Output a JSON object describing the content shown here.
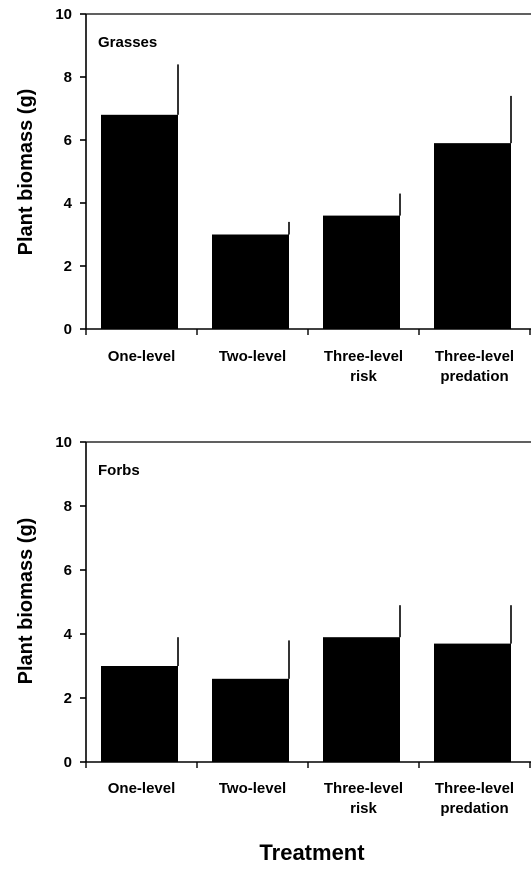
{
  "chart_data": [
    {
      "type": "bar",
      "panel_label": "Grasses",
      "ylabel": "Plant biomass (g)",
      "ylim": [
        0,
        10
      ],
      "yticks": [
        0,
        2,
        4,
        6,
        8,
        10
      ],
      "categories": [
        [
          "One-level"
        ],
        [
          "Two-level"
        ],
        [
          "Three-level",
          "risk"
        ],
        [
          "Three-level",
          "predation"
        ]
      ],
      "values": [
        6.8,
        3.0,
        3.6,
        5.9
      ],
      "error_upper": [
        8.4,
        3.4,
        4.3,
        7.4
      ],
      "bar_color": "#000000"
    },
    {
      "type": "bar",
      "panel_label": "Forbs",
      "ylabel": "Plant biomass (g)",
      "ylim": [
        0,
        10
      ],
      "yticks": [
        0,
        2,
        4,
        6,
        8,
        10
      ],
      "categories": [
        [
          "One-level"
        ],
        [
          "Two-level"
        ],
        [
          "Three-level",
          "risk"
        ],
        [
          "Three-level",
          "predation"
        ]
      ],
      "values": [
        3.0,
        2.6,
        3.9,
        3.7
      ],
      "error_upper": [
        3.9,
        3.8,
        4.9,
        4.9
      ],
      "bar_color": "#000000"
    }
  ],
  "xlabel": "Treatment"
}
